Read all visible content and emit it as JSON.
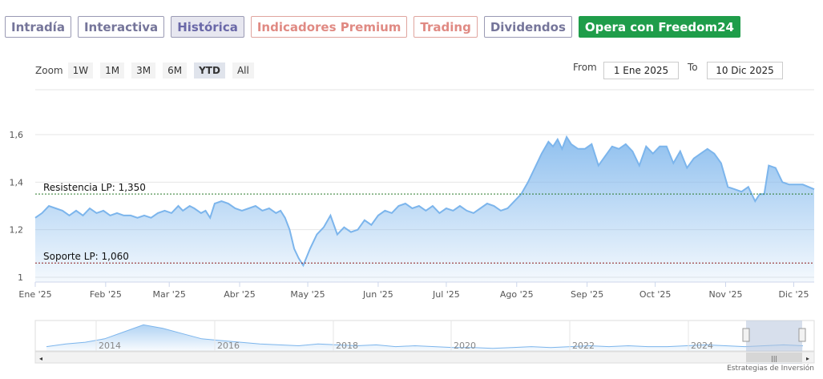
{
  "tabs": [
    {
      "label": "Intradía",
      "style": "normal"
    },
    {
      "label": "Interactiva",
      "style": "normal"
    },
    {
      "label": "Histórica",
      "style": "active"
    },
    {
      "label": "Indicadores Premium",
      "style": "premium"
    },
    {
      "label": "Trading",
      "style": "premium"
    },
    {
      "label": "Dividendos",
      "style": "normal"
    },
    {
      "label": "Opera con Freedom24",
      "style": "green"
    }
  ],
  "zoom": {
    "label": "Zoom",
    "buttons": [
      "1W",
      "1M",
      "3M",
      "6M",
      "YTD",
      "All"
    ],
    "active": "YTD"
  },
  "range": {
    "from_label": "From",
    "from_value": "1 Ene 2025",
    "to_label": "To",
    "to_value": "10 Dic 2025"
  },
  "credit": "Estrategias de Inversión",
  "colors": {
    "line": "#7cb5ec",
    "resistance": "#2a7a2a",
    "support": "#8b1a1a"
  },
  "chart_data": {
    "type": "area",
    "title": "",
    "ylim": [
      1.0,
      1.6
    ],
    "yticks": [
      {
        "v": 1.0,
        "label": "1"
      },
      {
        "v": 1.2,
        "label": "1,2"
      },
      {
        "v": 1.4,
        "label": "1,4"
      },
      {
        "v": 1.6,
        "label": "1,6"
      }
    ],
    "xticks": [
      {
        "date": "2025-01-01",
        "label": "Ene '25"
      },
      {
        "date": "2025-02-01",
        "label": "Feb '25"
      },
      {
        "date": "2025-03-01",
        "label": "Mar '25"
      },
      {
        "date": "2025-04-01",
        "label": "Abr '25"
      },
      {
        "date": "2025-05-01",
        "label": "May '25"
      },
      {
        "date": "2025-06-01",
        "label": "Jun '25"
      },
      {
        "date": "2025-07-01",
        "label": "Jul '25"
      },
      {
        "date": "2025-08-01",
        "label": "Ago '25"
      },
      {
        "date": "2025-09-01",
        "label": "Sep '25"
      },
      {
        "date": "2025-10-01",
        "label": "Oct '25"
      },
      {
        "date": "2025-11-01",
        "label": "Nov '25"
      },
      {
        "date": "2025-12-01",
        "label": "Dic '25"
      }
    ],
    "x_range": [
      "2025-01-01",
      "2025-12-10"
    ],
    "series": [
      {
        "values": [
          [
            "2025-01-01",
            1.25
          ],
          [
            "2025-01-04",
            1.27
          ],
          [
            "2025-01-07",
            1.3
          ],
          [
            "2025-01-10",
            1.29
          ],
          [
            "2025-01-13",
            1.28
          ],
          [
            "2025-01-16",
            1.26
          ],
          [
            "2025-01-19",
            1.28
          ],
          [
            "2025-01-22",
            1.26
          ],
          [
            "2025-01-25",
            1.29
          ],
          [
            "2025-01-28",
            1.27
          ],
          [
            "2025-01-31",
            1.28
          ],
          [
            "2025-02-03",
            1.26
          ],
          [
            "2025-02-06",
            1.27
          ],
          [
            "2025-02-09",
            1.26
          ],
          [
            "2025-02-12",
            1.26
          ],
          [
            "2025-02-15",
            1.25
          ],
          [
            "2025-02-18",
            1.26
          ],
          [
            "2025-02-21",
            1.25
          ],
          [
            "2025-02-24",
            1.27
          ],
          [
            "2025-02-27",
            1.28
          ],
          [
            "2025-03-02",
            1.27
          ],
          [
            "2025-03-05",
            1.3
          ],
          [
            "2025-03-07",
            1.28
          ],
          [
            "2025-03-10",
            1.3
          ],
          [
            "2025-03-12",
            1.29
          ],
          [
            "2025-03-15",
            1.27
          ],
          [
            "2025-03-17",
            1.28
          ],
          [
            "2025-03-19",
            1.25
          ],
          [
            "2025-03-21",
            1.31
          ],
          [
            "2025-03-24",
            1.32
          ],
          [
            "2025-03-27",
            1.31
          ],
          [
            "2025-03-30",
            1.29
          ],
          [
            "2025-04-02",
            1.28
          ],
          [
            "2025-04-05",
            1.29
          ],
          [
            "2025-04-08",
            1.3
          ],
          [
            "2025-04-11",
            1.28
          ],
          [
            "2025-04-14",
            1.29
          ],
          [
            "2025-04-17",
            1.27
          ],
          [
            "2025-04-19",
            1.28
          ],
          [
            "2025-04-21",
            1.25
          ],
          [
            "2025-04-23",
            1.2
          ],
          [
            "2025-04-25",
            1.12
          ],
          [
            "2025-04-27",
            1.08
          ],
          [
            "2025-04-29",
            1.05
          ],
          [
            "2025-05-02",
            1.12
          ],
          [
            "2025-05-05",
            1.18
          ],
          [
            "2025-05-08",
            1.21
          ],
          [
            "2025-05-11",
            1.26
          ],
          [
            "2025-05-14",
            1.18
          ],
          [
            "2025-05-17",
            1.21
          ],
          [
            "2025-05-20",
            1.19
          ],
          [
            "2025-05-23",
            1.2
          ],
          [
            "2025-05-26",
            1.24
          ],
          [
            "2025-05-29",
            1.22
          ],
          [
            "2025-06-01",
            1.26
          ],
          [
            "2025-06-04",
            1.28
          ],
          [
            "2025-06-07",
            1.27
          ],
          [
            "2025-06-10",
            1.3
          ],
          [
            "2025-06-13",
            1.31
          ],
          [
            "2025-06-16",
            1.29
          ],
          [
            "2025-06-19",
            1.3
          ],
          [
            "2025-06-22",
            1.28
          ],
          [
            "2025-06-25",
            1.3
          ],
          [
            "2025-06-28",
            1.27
          ],
          [
            "2025-07-01",
            1.29
          ],
          [
            "2025-07-04",
            1.28
          ],
          [
            "2025-07-07",
            1.3
          ],
          [
            "2025-07-10",
            1.28
          ],
          [
            "2025-07-13",
            1.27
          ],
          [
            "2025-07-16",
            1.29
          ],
          [
            "2025-07-19",
            1.31
          ],
          [
            "2025-07-22",
            1.3
          ],
          [
            "2025-07-25",
            1.28
          ],
          [
            "2025-07-28",
            1.29
          ],
          [
            "2025-07-31",
            1.32
          ],
          [
            "2025-08-03",
            1.35
          ],
          [
            "2025-08-06",
            1.4
          ],
          [
            "2025-08-09",
            1.46
          ],
          [
            "2025-08-12",
            1.52
          ],
          [
            "2025-08-15",
            1.57
          ],
          [
            "2025-08-17",
            1.55
          ],
          [
            "2025-08-19",
            1.58
          ],
          [
            "2025-08-21",
            1.54
          ],
          [
            "2025-08-23",
            1.59
          ],
          [
            "2025-08-25",
            1.56
          ],
          [
            "2025-08-28",
            1.54
          ],
          [
            "2025-08-31",
            1.54
          ],
          [
            "2025-09-03",
            1.56
          ],
          [
            "2025-09-06",
            1.47
          ],
          [
            "2025-09-09",
            1.51
          ],
          [
            "2025-09-12",
            1.55
          ],
          [
            "2025-09-15",
            1.54
          ],
          [
            "2025-09-18",
            1.56
          ],
          [
            "2025-09-21",
            1.53
          ],
          [
            "2025-09-24",
            1.47
          ],
          [
            "2025-09-27",
            1.55
          ],
          [
            "2025-09-30",
            1.52
          ],
          [
            "2025-10-03",
            1.55
          ],
          [
            "2025-10-06",
            1.55
          ],
          [
            "2025-10-09",
            1.48
          ],
          [
            "2025-10-12",
            1.53
          ],
          [
            "2025-10-15",
            1.46
          ],
          [
            "2025-10-18",
            1.5
          ],
          [
            "2025-10-21",
            1.52
          ],
          [
            "2025-10-24",
            1.54
          ],
          [
            "2025-10-27",
            1.52
          ],
          [
            "2025-10-30",
            1.48
          ],
          [
            "2025-11-02",
            1.38
          ],
          [
            "2025-11-05",
            1.37
          ],
          [
            "2025-11-08",
            1.36
          ],
          [
            "2025-11-11",
            1.38
          ],
          [
            "2025-11-14",
            1.32
          ],
          [
            "2025-11-16",
            1.35
          ],
          [
            "2025-11-18",
            1.35
          ],
          [
            "2025-11-20",
            1.47
          ],
          [
            "2025-11-23",
            1.46
          ],
          [
            "2025-11-26",
            1.4
          ],
          [
            "2025-11-29",
            1.39
          ],
          [
            "2025-12-02",
            1.39
          ],
          [
            "2025-12-05",
            1.39
          ],
          [
            "2025-12-10",
            1.37
          ]
        ]
      }
    ],
    "annotations": [
      {
        "label": "Resistencia LP: 1,350",
        "y": 1.35,
        "color": "#2a7a2a"
      },
      {
        "label": "Soporte LP: 1,060",
        "y": 1.06,
        "color": "#8b1a1a"
      }
    ],
    "navigator": {
      "year_labels": [
        "2014",
        "2016",
        "2018",
        "2020",
        "2022",
        "2024"
      ],
      "selected_range": "YTD"
    },
    "grid": true,
    "legend": "none"
  }
}
